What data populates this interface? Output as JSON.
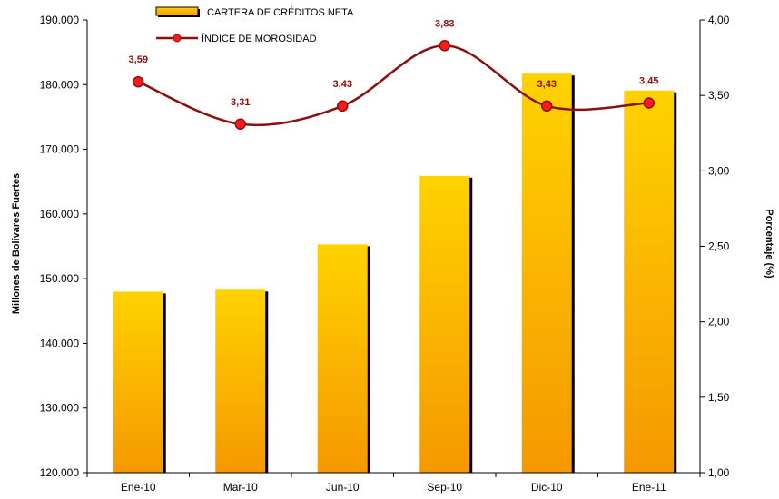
{
  "chart_data": {
    "type": "bar",
    "categories": [
      "Ene-10",
      "Mar-10",
      "Jun-10",
      "Sep-10",
      "Dic-10",
      "Ene-11"
    ],
    "series": [
      {
        "name": "CARTERA DE CRÉDITOS NETA",
        "type": "bar",
        "axis": "left",
        "values": [
          148000,
          148300,
          155300,
          165900,
          181700,
          179100
        ]
      },
      {
        "name": "ÍNDICE DE MOROSIDAD",
        "type": "line",
        "axis": "right",
        "values": [
          3.59,
          3.31,
          3.43,
          3.83,
          3.43,
          3.45
        ],
        "labels": [
          "3,59",
          "3,31",
          "3,43",
          "3,83",
          "3,43",
          "3,45"
        ]
      }
    ],
    "ylabel": "Millones de Bolívares Fuertes",
    "y2label": "Porcentaje (%)",
    "ylim": [
      120000,
      190000
    ],
    "y2lim": [
      1.0,
      4.0
    ],
    "yticks": [
      120000,
      130000,
      140000,
      150000,
      160000,
      170000,
      180000,
      190000
    ],
    "ytick_labels": [
      "120.000",
      "130.000",
      "140.000",
      "150.000",
      "160.000",
      "170.000",
      "180.000",
      "190.000"
    ],
    "y2ticks": [
      1.0,
      1.5,
      2.0,
      2.5,
      3.0,
      3.5,
      4.0
    ],
    "y2tick_labels": [
      "1,00",
      "1,50",
      "2,00",
      "2,50",
      "3,00",
      "3,50",
      "4,00"
    ],
    "legend_position": "top-left",
    "grid": false,
    "colors": {
      "bar_top": "#FFD200",
      "bar_bottom": "#F59800",
      "bar_shadow": "#000000",
      "line": "#8B1010",
      "marker": "#FF1A1A",
      "marker_stroke": "#8B1010",
      "point_label": "#8B1010"
    }
  }
}
